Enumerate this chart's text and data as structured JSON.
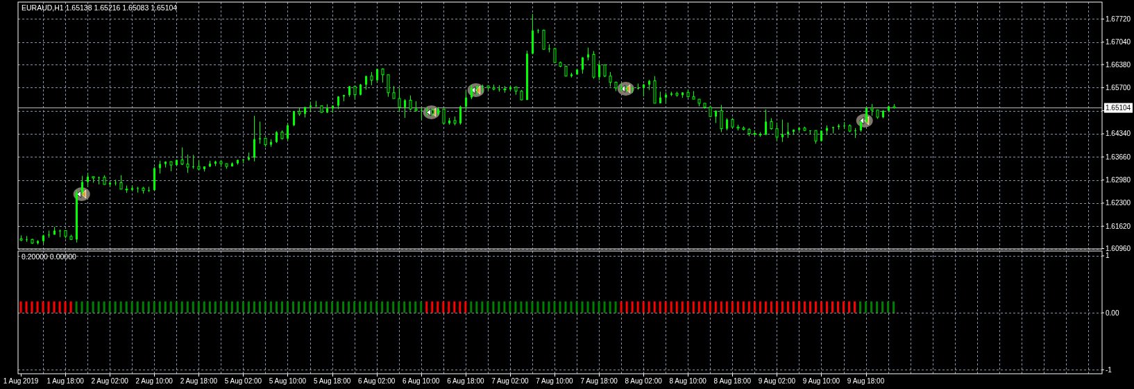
{
  "chart_data": [
    {
      "type": "candlestick",
      "title": "EURAUD,H1  1.65138 1.65216 1.65083 1.65104",
      "color": "#00ff00",
      "ohlc": [
        [
          1.6125,
          1.6135,
          1.6118,
          1.6121
        ],
        [
          1.6121,
          1.6133,
          1.6116,
          1.6123
        ],
        [
          1.6123,
          1.6125,
          1.611,
          1.6112
        ],
        [
          1.6112,
          1.6121,
          1.6108,
          1.6118
        ],
        [
          1.6118,
          1.6137,
          1.6111,
          1.6135
        ],
        [
          1.6135,
          1.6149,
          1.6128,
          1.6137
        ],
        [
          1.6137,
          1.616,
          1.6137,
          1.6149
        ],
        [
          1.6149,
          1.6152,
          1.613,
          1.6149
        ],
        [
          1.6149,
          1.6149,
          1.6126,
          1.6132
        ],
        [
          1.6132,
          1.6137,
          1.6121,
          1.6123
        ],
        [
          1.6123,
          1.6268,
          1.6114,
          1.6261
        ],
        [
          1.6261,
          1.631,
          1.6254,
          1.6292
        ],
        [
          1.6292,
          1.6319,
          1.6278,
          1.6308
        ],
        [
          1.6308,
          1.6308,
          1.629,
          1.6304
        ],
        [
          1.6304,
          1.6308,
          1.6285,
          1.6306
        ],
        [
          1.6306,
          1.6312,
          1.6284,
          1.6285
        ],
        [
          1.6285,
          1.6292,
          1.6278,
          1.629
        ],
        [
          1.629,
          1.6299,
          1.6282,
          1.629
        ],
        [
          1.629,
          1.6312,
          1.6271,
          1.6271
        ],
        [
          1.6271,
          1.6282,
          1.626,
          1.6269
        ],
        [
          1.6269,
          1.6282,
          1.6265,
          1.6274
        ],
        [
          1.6274,
          1.6278,
          1.6261,
          1.6274
        ],
        [
          1.6274,
          1.6278,
          1.6258,
          1.6267
        ],
        [
          1.6267,
          1.6278,
          1.6263,
          1.6268
        ],
        [
          1.6268,
          1.6336,
          1.6267,
          1.6333
        ],
        [
          1.6333,
          1.6355,
          1.6317,
          1.6345
        ],
        [
          1.6345,
          1.6353,
          1.6335,
          1.6352
        ],
        [
          1.6352,
          1.6353,
          1.6324,
          1.6342
        ],
        [
          1.6342,
          1.6358,
          1.634,
          1.6357
        ],
        [
          1.6357,
          1.6394,
          1.6342,
          1.6345
        ],
        [
          1.6345,
          1.6373,
          1.6319,
          1.6336
        ],
        [
          1.6336,
          1.6372,
          1.6331,
          1.6338
        ],
        [
          1.6338,
          1.6357,
          1.6326,
          1.633
        ],
        [
          1.633,
          1.6338,
          1.6323,
          1.6338
        ],
        [
          1.6338,
          1.6355,
          1.6336,
          1.6346
        ],
        [
          1.6346,
          1.6355,
          1.6339,
          1.6352
        ],
        [
          1.6352,
          1.6357,
          1.6336,
          1.6346
        ],
        [
          1.6346,
          1.6347,
          1.6331,
          1.6338
        ],
        [
          1.6338,
          1.635,
          1.6338,
          1.6347
        ],
        [
          1.6347,
          1.6358,
          1.6343,
          1.6357
        ],
        [
          1.6357,
          1.636,
          1.6347,
          1.6358
        ],
        [
          1.6358,
          1.6379,
          1.6355,
          1.6364
        ],
        [
          1.6364,
          1.6487,
          1.6353,
          1.6418
        ],
        [
          1.6418,
          1.647,
          1.6405,
          1.6421
        ],
        [
          1.6421,
          1.6422,
          1.6396,
          1.6402
        ],
        [
          1.6402,
          1.6418,
          1.6396,
          1.641
        ],
        [
          1.641,
          1.6442,
          1.6407,
          1.6439
        ],
        [
          1.6439,
          1.6444,
          1.6417,
          1.642
        ],
        [
          1.642,
          1.6465,
          1.6413,
          1.6459
        ],
        [
          1.6459,
          1.65,
          1.6457,
          1.65
        ],
        [
          1.65,
          1.651,
          1.6487,
          1.6493
        ],
        [
          1.6493,
          1.6513,
          1.6482,
          1.6513
        ],
        [
          1.6513,
          1.6529,
          1.65,
          1.6517
        ],
        [
          1.6517,
          1.6531,
          1.6513,
          1.6517
        ],
        [
          1.6517,
          1.6517,
          1.6496,
          1.6497
        ],
        [
          1.6497,
          1.6521,
          1.6495,
          1.6509
        ],
        [
          1.6509,
          1.6517,
          1.6495,
          1.6517
        ],
        [
          1.6517,
          1.6545,
          1.6507,
          1.6544
        ],
        [
          1.6544,
          1.6549,
          1.653,
          1.6548
        ],
        [
          1.6548,
          1.6575,
          1.6543,
          1.6574
        ],
        [
          1.6574,
          1.6575,
          1.6536,
          1.6549
        ],
        [
          1.6549,
          1.6581,
          1.6547,
          1.6579
        ],
        [
          1.6579,
          1.6605,
          1.6564,
          1.6604
        ],
        [
          1.6604,
          1.6616,
          1.6577,
          1.6592
        ],
        [
          1.6592,
          1.6626,
          1.6586,
          1.6625
        ],
        [
          1.6625,
          1.6627,
          1.6585,
          1.6608
        ],
        [
          1.6608,
          1.6608,
          1.6543,
          1.6555
        ],
        [
          1.6555,
          1.6575,
          1.6538,
          1.6538
        ],
        [
          1.6538,
          1.6569,
          1.65,
          1.6512
        ],
        [
          1.6512,
          1.6536,
          1.6481,
          1.6533
        ],
        [
          1.6533,
          1.6547,
          1.6503,
          1.6507
        ],
        [
          1.6507,
          1.653,
          1.6499,
          1.6503
        ],
        [
          1.6503,
          1.651,
          1.6476,
          1.6504
        ],
        [
          1.6504,
          1.6514,
          1.6487,
          1.6504
        ],
        [
          1.6504,
          1.6508,
          1.6487,
          1.6493
        ],
        [
          1.6493,
          1.6513,
          1.6488,
          1.6507
        ],
        [
          1.6507,
          1.6507,
          1.6463,
          1.6465
        ],
        [
          1.6465,
          1.6481,
          1.6461,
          1.6473
        ],
        [
          1.6473,
          1.6485,
          1.6459,
          1.6465
        ],
        [
          1.6465,
          1.6517,
          1.6461,
          1.6514
        ],
        [
          1.6514,
          1.6562,
          1.6502,
          1.6541
        ],
        [
          1.6541,
          1.6579,
          1.6536,
          1.6569
        ],
        [
          1.6569,
          1.6575,
          1.6548,
          1.6574
        ],
        [
          1.6574,
          1.6579,
          1.6555,
          1.6575
        ],
        [
          1.6575,
          1.6577,
          1.6562,
          1.657
        ],
        [
          1.657,
          1.6579,
          1.6562,
          1.6566
        ],
        [
          1.6566,
          1.6577,
          1.6558,
          1.6566
        ],
        [
          1.6566,
          1.6575,
          1.6555,
          1.6565
        ],
        [
          1.6565,
          1.6575,
          1.656,
          1.6572
        ],
        [
          1.6572,
          1.6573,
          1.6549,
          1.656
        ],
        [
          1.656,
          1.6563,
          1.6533,
          1.6534
        ],
        [
          1.6534,
          1.6679,
          1.6533,
          1.667
        ],
        [
          1.667,
          1.6787,
          1.6668,
          1.6738
        ],
        [
          1.6738,
          1.6743,
          1.673,
          1.6739
        ],
        [
          1.6739,
          1.6741,
          1.6682,
          1.6683
        ],
        [
          1.6683,
          1.6698,
          1.6674,
          1.6685
        ],
        [
          1.6685,
          1.6687,
          1.6642,
          1.6644
        ],
        [
          1.6644,
          1.6647,
          1.663,
          1.6633
        ],
        [
          1.6633,
          1.6633,
          1.6603,
          1.6604
        ],
        [
          1.6604,
          1.6614,
          1.66,
          1.6609
        ],
        [
          1.6609,
          1.6626,
          1.6608,
          1.6623
        ],
        [
          1.6623,
          1.666,
          1.6611,
          1.6659
        ],
        [
          1.6659,
          1.6688,
          1.665,
          1.6668
        ],
        [
          1.6668,
          1.6678,
          1.6596,
          1.6601
        ],
        [
          1.6601,
          1.6647,
          1.6592,
          1.6637
        ],
        [
          1.6637,
          1.6637,
          1.6601,
          1.6604
        ],
        [
          1.6604,
          1.6616,
          1.6573,
          1.6586
        ],
        [
          1.6586,
          1.6588,
          1.656,
          1.6569
        ],
        [
          1.6569,
          1.6582,
          1.656,
          1.6566
        ],
        [
          1.6566,
          1.6575,
          1.6558,
          1.6567
        ],
        [
          1.6567,
          1.6572,
          1.6555,
          1.6569
        ],
        [
          1.6569,
          1.6582,
          1.6564,
          1.6569
        ],
        [
          1.6569,
          1.6581,
          1.6544,
          1.6579
        ],
        [
          1.6579,
          1.6593,
          1.6563,
          1.659
        ],
        [
          1.659,
          1.6604,
          1.6524,
          1.6524
        ],
        [
          1.6524,
          1.6558,
          1.6524,
          1.6541
        ],
        [
          1.6541,
          1.6556,
          1.6525,
          1.6549
        ],
        [
          1.6549,
          1.6558,
          1.6545,
          1.6553
        ],
        [
          1.6553,
          1.6558,
          1.6543,
          1.6548
        ],
        [
          1.6548,
          1.6556,
          1.654,
          1.6556
        ],
        [
          1.6556,
          1.6565,
          1.6541,
          1.6543
        ],
        [
          1.6543,
          1.656,
          1.6536,
          1.6536
        ],
        [
          1.6536,
          1.6536,
          1.6515,
          1.6524
        ],
        [
          1.6524,
          1.6524,
          1.6508,
          1.6513
        ],
        [
          1.6513,
          1.6517,
          1.6483,
          1.6485
        ],
        [
          1.6485,
          1.6503,
          1.6466,
          1.6502
        ],
        [
          1.6502,
          1.6519,
          1.6439,
          1.6449
        ],
        [
          1.6449,
          1.648,
          1.6444,
          1.6476
        ],
        [
          1.6476,
          1.6481,
          1.6451,
          1.6454
        ],
        [
          1.6454,
          1.6461,
          1.6444,
          1.6451
        ],
        [
          1.6451,
          1.6456,
          1.6444,
          1.6447
        ],
        [
          1.6447,
          1.6451,
          1.6427,
          1.6435
        ],
        [
          1.6435,
          1.6444,
          1.6429,
          1.6433
        ],
        [
          1.6433,
          1.6439,
          1.6425,
          1.6431
        ],
        [
          1.6431,
          1.6506,
          1.6431,
          1.647
        ],
        [
          1.647,
          1.648,
          1.6446,
          1.6449
        ],
        [
          1.6449,
          1.6467,
          1.6413,
          1.6424
        ],
        [
          1.6424,
          1.6476,
          1.641,
          1.6433
        ],
        [
          1.6433,
          1.6467,
          1.6422,
          1.644
        ],
        [
          1.644,
          1.6447,
          1.6431,
          1.6446
        ],
        [
          1.6446,
          1.6454,
          1.6439,
          1.6451
        ],
        [
          1.6451,
          1.6455,
          1.6442,
          1.6444
        ],
        [
          1.6444,
          1.6444,
          1.6433,
          1.6444
        ],
        [
          1.6444,
          1.6444,
          1.6405,
          1.6413
        ],
        [
          1.6413,
          1.6444,
          1.6411,
          1.6443
        ],
        [
          1.6443,
          1.6459,
          1.6431,
          1.6451
        ],
        [
          1.6451,
          1.6455,
          1.6435,
          1.6454
        ],
        [
          1.6454,
          1.6463,
          1.6446,
          1.6458
        ],
        [
          1.6458,
          1.6469,
          1.6448,
          1.6458
        ],
        [
          1.6458,
          1.6462,
          1.6439,
          1.6442
        ],
        [
          1.6442,
          1.6451,
          1.6422,
          1.6444
        ],
        [
          1.6444,
          1.6472,
          1.644,
          1.647
        ],
        [
          1.647,
          1.6514,
          1.6466,
          1.651
        ],
        [
          1.651,
          1.6522,
          1.6487,
          1.6504
        ],
        [
          1.6504,
          1.6505,
          1.6478,
          1.6483
        ],
        [
          1.6483,
          1.6504,
          1.648,
          1.6502
        ],
        [
          1.6502,
          1.6517,
          1.6497,
          1.6515
        ],
        [
          1.65138,
          1.65216,
          1.65083,
          1.65104
        ],
        null,
        null,
        null,
        null,
        null,
        null,
        null,
        null,
        null,
        null,
        null,
        null,
        null,
        null,
        null,
        null,
        null,
        null,
        null,
        null,
        null,
        null,
        null,
        null,
        null,
        null,
        null,
        null,
        null,
        null,
        null,
        null,
        null,
        null,
        null,
        null,
        null
      ],
      "ylim": [
        1.6095,
        1.6822
      ],
      "yticks": [
        {
          "value": 1.6096,
          "label": "1.60960"
        },
        {
          "value": 1.6162,
          "label": "1.61620"
        },
        {
          "value": 1.623,
          "label": "1.62300"
        },
        {
          "value": 1.6298,
          "label": "1.62980"
        },
        {
          "value": 1.6366,
          "label": "1.63660"
        },
        {
          "value": 1.6434,
          "label": "1.64340"
        },
        {
          "value": 1.6502,
          "label": null
        },
        {
          "value": 1.657,
          "label": "1.65700"
        },
        {
          "value": 1.6638,
          "label": "1.66380"
        },
        {
          "value": 1.6704,
          "label": "1.67040"
        },
        {
          "value": 1.6772,
          "label": "1.67720"
        }
      ],
      "ref_lines": [
        {
          "axis": "y",
          "value": 1.65104,
          "label": "1.65104",
          "color": "#c0c0c0"
        }
      ],
      "grid": true
    },
    {
      "type": "bar",
      "title": "0.20000 0.00000",
      "categories": [
        "1 Aug 2019",
        null,
        null,
        null,
        null,
        null,
        null,
        null,
        "1 Aug 18:00",
        null,
        null,
        null,
        null,
        null,
        null,
        null,
        "2 Aug 02:00",
        null,
        null,
        null,
        null,
        null,
        null,
        null,
        "2 Aug 10:00",
        null,
        null,
        null,
        null,
        null,
        null,
        null,
        "2 Aug 18:00",
        null,
        null,
        null,
        null,
        null,
        null,
        null,
        "5 Aug 02:00",
        null,
        null,
        null,
        null,
        null,
        null,
        null,
        "5 Aug 10:00",
        null,
        null,
        null,
        null,
        null,
        null,
        null,
        "5 Aug 18:00",
        null,
        null,
        null,
        null,
        null,
        null,
        null,
        "6 Aug 02:00",
        null,
        null,
        null,
        null,
        null,
        null,
        null,
        "6 Aug 10:00",
        null,
        null,
        null,
        null,
        null,
        null,
        null,
        "6 Aug 18:00",
        null,
        null,
        null,
        null,
        null,
        null,
        null,
        "7 Aug 02:00",
        null,
        null,
        null,
        null,
        null,
        null,
        null,
        "7 Aug 10:00",
        null,
        null,
        null,
        null,
        null,
        null,
        null,
        "7 Aug 18:00",
        null,
        null,
        null,
        null,
        null,
        null,
        null,
        "8 Aug 02:00",
        null,
        null,
        null,
        null,
        null,
        null,
        null,
        "8 Aug 10:00",
        null,
        null,
        null,
        null,
        null,
        null,
        null,
        "8 Aug 18:00",
        null,
        null,
        null,
        null,
        null,
        null,
        null,
        "9 Aug 02:00",
        null,
        null,
        null,
        null,
        null,
        null,
        null,
        "9 Aug 10:00",
        null,
        null,
        null,
        null,
        null,
        null,
        null,
        "9 Aug 18:00",
        null,
        null,
        null,
        null,
        null,
        null,
        null,
        null,
        null,
        null,
        null,
        null,
        null,
        null,
        null,
        null,
        null,
        null,
        null,
        null,
        null,
        null,
        null,
        null,
        null,
        null,
        null,
        null,
        null,
        null,
        null,
        null,
        null,
        null,
        null,
        null,
        null,
        null,
        null,
        null,
        null,
        null
      ],
      "series": [
        {
          "color": "#008000",
          "values": [
            null,
            null,
            null,
            null,
            null,
            null,
            null,
            null,
            null,
            null,
            0.2,
            0.2,
            0.2,
            0.2,
            0.2,
            0.2,
            0.2,
            0.2,
            0.2,
            0.2,
            0.2,
            0.2,
            0.2,
            0.2,
            0.2,
            0.2,
            0.2,
            0.2,
            0.2,
            0.2,
            0.2,
            0.2,
            0.2,
            0.2,
            0.2,
            0.2,
            0.2,
            0.2,
            0.2,
            0.2,
            0.2,
            0.2,
            0.2,
            0.2,
            0.2,
            0.2,
            0.2,
            0.2,
            0.2,
            0.2,
            0.2,
            0.2,
            0.2,
            0.2,
            0.2,
            0.2,
            0.2,
            0.2,
            0.2,
            0.2,
            0.2,
            0.2,
            0.2,
            0.2,
            0.2,
            0.2,
            0.2,
            0.2,
            0.2,
            0.2,
            0.2,
            0.2,
            0.2,
            null,
            null,
            null,
            null,
            null,
            null,
            null,
            null,
            0.2,
            0.2,
            0.2,
            0.2,
            0.2,
            0.2,
            0.2,
            0.2,
            0.2,
            0.2,
            0.2,
            0.2,
            0.2,
            0.2,
            0.2,
            0.2,
            0.2,
            0.2,
            0.2,
            0.2,
            0.2,
            0.2,
            0.2,
            0.2,
            0.2,
            0.2,
            0.2,
            null,
            null,
            null,
            null,
            null,
            null,
            null,
            null,
            null,
            null,
            null,
            null,
            null,
            null,
            null,
            null,
            null,
            null,
            null,
            null,
            null,
            null,
            null,
            null,
            null,
            null,
            null,
            null,
            null,
            null,
            null,
            null,
            null,
            null,
            null,
            null,
            null,
            null,
            null,
            null,
            null,
            null,
            null,
            0.2,
            0.2,
            0.2,
            0.2,
            0.2,
            0.2,
            0.2,
            null,
            null,
            null,
            null,
            null,
            null,
            null,
            null,
            null,
            null,
            null,
            null,
            null,
            null,
            null,
            null,
            null,
            null,
            null,
            null,
            null,
            null,
            null,
            null,
            null,
            null,
            null,
            null,
            null,
            null,
            null,
            null,
            null,
            null,
            null,
            null,
            null
          ]
        },
        {
          "color": "#ff0000",
          "values": [
            0.2,
            0.2,
            0.2,
            0.2,
            0.2,
            0.2,
            0.2,
            0.2,
            0.2,
            0.2,
            null,
            null,
            null,
            null,
            null,
            null,
            null,
            null,
            null,
            null,
            null,
            null,
            null,
            null,
            null,
            null,
            null,
            null,
            null,
            null,
            null,
            null,
            null,
            null,
            null,
            null,
            null,
            null,
            null,
            null,
            null,
            null,
            null,
            null,
            null,
            null,
            null,
            null,
            null,
            null,
            null,
            null,
            null,
            null,
            null,
            null,
            null,
            null,
            null,
            null,
            null,
            null,
            null,
            null,
            null,
            null,
            null,
            null,
            null,
            null,
            null,
            null,
            null,
            0.2,
            0.2,
            0.2,
            0.2,
            0.2,
            0.2,
            0.2,
            0.2,
            null,
            null,
            null,
            null,
            null,
            null,
            null,
            null,
            null,
            null,
            null,
            null,
            null,
            null,
            null,
            null,
            null,
            null,
            null,
            null,
            null,
            null,
            null,
            null,
            null,
            null,
            null,
            0.2,
            0.2,
            0.2,
            0.2,
            0.2,
            0.2,
            0.2,
            0.2,
            0.2,
            0.2,
            0.2,
            0.2,
            0.2,
            0.2,
            0.2,
            0.2,
            0.2,
            0.2,
            0.2,
            0.2,
            0.2,
            0.2,
            0.2,
            0.2,
            0.2,
            0.2,
            0.2,
            0.2,
            0.2,
            0.2,
            0.2,
            0.2,
            0.2,
            0.2,
            0.2,
            0.2,
            0.2,
            0.2,
            0.2,
            0.2,
            0.2,
            0.2,
            0.2,
            null,
            null,
            null,
            null,
            null,
            null,
            null,
            null,
            null,
            null,
            null,
            null,
            null,
            null,
            null,
            null,
            null,
            null,
            null,
            null,
            null,
            null,
            null,
            null,
            null,
            null,
            null,
            null,
            null,
            null,
            null,
            null,
            null,
            null,
            null,
            null,
            null,
            null,
            null,
            null,
            null,
            null,
            null,
            null
          ]
        }
      ],
      "ylim": [
        -1.07,
        1.085
      ],
      "yticks": [
        1,
        {
          "value": 0,
          "label": "0.00"
        },
        -1
      ],
      "grid": true
    }
  ]
}
